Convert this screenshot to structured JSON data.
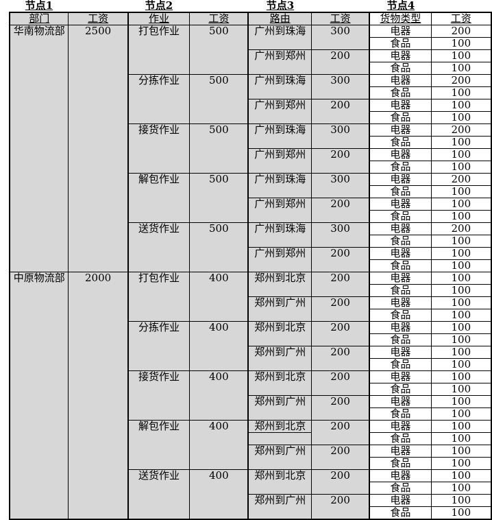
{
  "page": {
    "background": "#ffffff"
  },
  "table": {
    "node_titles": [
      "节点1",
      "节点2",
      "节点3",
      "节点4"
    ],
    "headers": [
      "部门",
      "工资",
      "作业",
      "工资",
      "路由",
      "工资",
      "货物类型",
      "工资"
    ],
    "colors": {
      "group_cell_bg": "#d7d7d7",
      "leaf_cell_bg": "#ffffff",
      "border": "#000000",
      "text": "#000000"
    },
    "departments": [
      {
        "name": "华南物流部",
        "salary": "2500",
        "operations": [
          {
            "name": "打包作业",
            "salary": "500",
            "routes": [
              {
                "name": "广州到珠海",
                "salary": "300",
                "goods": [
                  {
                    "type": "电器",
                    "salary": "200"
                  },
                  {
                    "type": "食品",
                    "salary": "100"
                  }
                ]
              },
              {
                "name": "广州到郑州",
                "salary": "200",
                "goods": [
                  {
                    "type": "电器",
                    "salary": "100"
                  },
                  {
                    "type": "食品",
                    "salary": "100"
                  }
                ]
              }
            ]
          },
          {
            "name": "分拣作业",
            "salary": "500",
            "routes": [
              {
                "name": "广州到珠海",
                "salary": "300",
                "goods": [
                  {
                    "type": "电器",
                    "salary": "200"
                  },
                  {
                    "type": "食品",
                    "salary": "100"
                  }
                ]
              },
              {
                "name": "广州到郑州",
                "salary": "200",
                "goods": [
                  {
                    "type": "电器",
                    "salary": "100"
                  },
                  {
                    "type": "食品",
                    "salary": "100"
                  }
                ]
              }
            ]
          },
          {
            "name": "接货作业",
            "salary": "500",
            "routes": [
              {
                "name": "广州到珠海",
                "salary": "300",
                "goods": [
                  {
                    "type": "电器",
                    "salary": "200"
                  },
                  {
                    "type": "食品",
                    "salary": "100"
                  }
                ]
              },
              {
                "name": "广州到郑州",
                "salary": "200",
                "goods": [
                  {
                    "type": "电器",
                    "salary": "100"
                  },
                  {
                    "type": "食品",
                    "salary": "100"
                  }
                ]
              }
            ]
          },
          {
            "name": "解包作业",
            "salary": "500",
            "routes": [
              {
                "name": "广州到珠海",
                "salary": "300",
                "goods": [
                  {
                    "type": "电器",
                    "salary": "200"
                  },
                  {
                    "type": "食品",
                    "salary": "100"
                  }
                ]
              },
              {
                "name": "广州到郑州",
                "salary": "200",
                "goods": [
                  {
                    "type": "电器",
                    "salary": "100"
                  },
                  {
                    "type": "食品",
                    "salary": "100"
                  }
                ]
              }
            ]
          },
          {
            "name": "送货作业",
            "salary": "500",
            "routes": [
              {
                "name": "广州到珠海",
                "salary": "300",
                "goods": [
                  {
                    "type": "电器",
                    "salary": "200"
                  },
                  {
                    "type": "食品",
                    "salary": "100"
                  }
                ]
              },
              {
                "name": "广州到郑州",
                "salary": "200",
                "goods": [
                  {
                    "type": "电器",
                    "salary": "100"
                  },
                  {
                    "type": "食品",
                    "salary": "100"
                  }
                ]
              }
            ]
          }
        ]
      },
      {
        "name": "中原物流部",
        "salary": "2000",
        "operations": [
          {
            "name": "打包作业",
            "salary": "400",
            "routes": [
              {
                "name": "郑州到北京",
                "salary": "200",
                "goods": [
                  {
                    "type": "电器",
                    "salary": "100"
                  },
                  {
                    "type": "食品",
                    "salary": "100"
                  }
                ]
              },
              {
                "name": "郑州到广州",
                "salary": "200",
                "goods": [
                  {
                    "type": "电器",
                    "salary": "100"
                  },
                  {
                    "type": "食品",
                    "salary": "100"
                  }
                ]
              }
            ]
          },
          {
            "name": "分拣作业",
            "salary": "400",
            "routes": [
              {
                "name": "郑州到北京",
                "salary": "200",
                "goods": [
                  {
                    "type": "电器",
                    "salary": "100"
                  },
                  {
                    "type": "食品",
                    "salary": "100"
                  }
                ]
              },
              {
                "name": "郑州到广州",
                "salary": "200",
                "goods": [
                  {
                    "type": "电器",
                    "salary": "100"
                  },
                  {
                    "type": "食品",
                    "salary": "100"
                  }
                ]
              }
            ]
          },
          {
            "name": "接货作业",
            "salary": "400",
            "routes": [
              {
                "name": "郑州到北京",
                "salary": "200",
                "goods": [
                  {
                    "type": "电器",
                    "salary": "100"
                  },
                  {
                    "type": "食品",
                    "salary": "100"
                  }
                ]
              },
              {
                "name": "郑州到广州",
                "salary": "200",
                "goods": [
                  {
                    "type": "电器",
                    "salary": "100"
                  },
                  {
                    "type": "食品",
                    "salary": "100"
                  }
                ]
              }
            ]
          },
          {
            "name": "解包作业",
            "salary": "400",
            "routes": [
              {
                "name": "郑州到北京",
                "salary": "200",
                "split_cell": true,
                "goods": [
                  {
                    "type": "电器",
                    "salary": "100"
                  },
                  {
                    "type": "食品",
                    "salary": "100"
                  }
                ]
              },
              {
                "name": "郑州到广州",
                "salary": "200",
                "goods": [
                  {
                    "type": "电器",
                    "salary": "100"
                  },
                  {
                    "type": "食品",
                    "salary": "100"
                  }
                ]
              }
            ]
          },
          {
            "name": "送货作业",
            "salary": "400",
            "routes": [
              {
                "name": "郑州到北京",
                "salary": "200",
                "goods": [
                  {
                    "type": "电器",
                    "salary": "100"
                  },
                  {
                    "type": "食品",
                    "salary": "100"
                  }
                ]
              },
              {
                "name": "郑州到广州",
                "salary": "200",
                "goods": [
                  {
                    "type": "电器",
                    "salary": "100"
                  },
                  {
                    "type": "食品",
                    "salary": "100"
                  }
                ]
              }
            ]
          }
        ]
      }
    ]
  }
}
